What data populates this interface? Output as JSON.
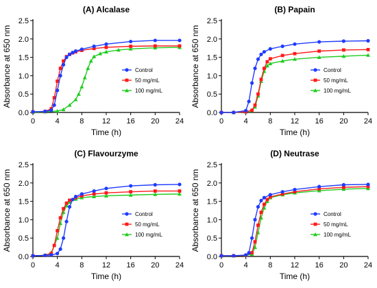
{
  "chart_data": [
    {
      "type": "line",
      "title": "(A)  Alcalase",
      "xlabel": "Time (h)",
      "ylabel": "Absorbance at 650 nm",
      "xlim": [
        0,
        24
      ],
      "ylim": [
        0,
        2.5
      ],
      "xticks": [
        0,
        4,
        8,
        12,
        16,
        20,
        24
      ],
      "yticks": [
        0.0,
        0.5,
        1.0,
        1.5,
        2.0,
        2.5
      ],
      "legend_position": "right",
      "series": [
        {
          "name": "Control",
          "color": "#1f3bff",
          "marker": "circle",
          "x": [
            0,
            2,
            3,
            3.5,
            4,
            4.5,
            5,
            5.5,
            6,
            6.5,
            7,
            8,
            10,
            12,
            16,
            20,
            24
          ],
          "y": [
            0.02,
            0.03,
            0.06,
            0.2,
            0.6,
            1.0,
            1.3,
            1.5,
            1.58,
            1.63,
            1.67,
            1.72,
            1.8,
            1.86,
            1.93,
            1.96,
            1.96
          ]
        },
        {
          "name": "50 mg/mL",
          "color": "#ff1a1a",
          "marker": "square",
          "x": [
            0,
            2,
            3,
            3.5,
            4,
            4.5,
            5,
            5.5,
            6,
            6.5,
            7,
            8,
            10,
            12,
            16,
            20,
            24
          ],
          "y": [
            0.02,
            0.03,
            0.1,
            0.4,
            0.85,
            1.2,
            1.4,
            1.52,
            1.58,
            1.62,
            1.65,
            1.69,
            1.74,
            1.77,
            1.8,
            1.81,
            1.81
          ]
        },
        {
          "name": "100 mg/mL",
          "color": "#1fcc1f",
          "marker": "triangle",
          "x": [
            0,
            2,
            4,
            5,
            6,
            7,
            7.5,
            8,
            8.5,
            9,
            9.5,
            10,
            11,
            12,
            14,
            16,
            20,
            24
          ],
          "y": [
            0.01,
            0.02,
            0.04,
            0.08,
            0.2,
            0.35,
            0.5,
            0.7,
            0.95,
            1.2,
            1.4,
            1.52,
            1.6,
            1.65,
            1.7,
            1.73,
            1.76,
            1.77
          ]
        }
      ]
    },
    {
      "type": "line",
      "title": "(B)  Papain",
      "xlabel": "Time (h)",
      "ylabel": "Absorbance at 650 nm",
      "xlim": [
        0,
        24
      ],
      "ylim": [
        0,
        2.5
      ],
      "xticks": [
        0,
        4,
        8,
        12,
        16,
        20,
        24
      ],
      "yticks": [
        0.0,
        0.5,
        1.0,
        1.5,
        2.0,
        2.5
      ],
      "legend_position": "right",
      "series": [
        {
          "name": "Control",
          "color": "#1f3bff",
          "marker": "circle",
          "x": [
            0,
            2,
            4,
            4.5,
            5,
            5.5,
            6,
            6.5,
            7,
            8,
            10,
            12,
            16,
            20,
            24
          ],
          "y": [
            0.0,
            0.0,
            0.05,
            0.3,
            0.8,
            1.2,
            1.45,
            1.58,
            1.65,
            1.73,
            1.8,
            1.86,
            1.92,
            1.94,
            1.95
          ]
        },
        {
          "name": "50 mg/mL",
          "color": "#ff1a1a",
          "marker": "square",
          "x": [
            0,
            2,
            4,
            5,
            5.5,
            6,
            6.5,
            7,
            7.5,
            8,
            10,
            12,
            16,
            20,
            24
          ],
          "y": [
            0.0,
            0.0,
            0.02,
            0.06,
            0.2,
            0.5,
            0.9,
            1.2,
            1.38,
            1.46,
            1.55,
            1.6,
            1.67,
            1.7,
            1.71
          ]
        },
        {
          "name": "100 mg/mL",
          "color": "#1fcc1f",
          "marker": "triangle",
          "x": [
            0,
            2,
            4,
            5,
            5.5,
            6,
            6.5,
            7,
            7.5,
            8,
            10,
            12,
            16,
            20,
            24
          ],
          "y": [
            0.0,
            0.0,
            0.02,
            0.05,
            0.15,
            0.45,
            0.85,
            1.12,
            1.27,
            1.33,
            1.4,
            1.45,
            1.5,
            1.53,
            1.56
          ]
        }
      ]
    },
    {
      "type": "line",
      "title": "(C)  Flavourzyme",
      "xlabel": "Time (h)",
      "ylabel": "Absorbance at 650 nm",
      "xlim": [
        0,
        24
      ],
      "ylim": [
        0,
        2.5
      ],
      "xticks": [
        0,
        4,
        8,
        12,
        16,
        20,
        24
      ],
      "yticks": [
        0.0,
        0.5,
        1.0,
        1.5,
        2.0,
        2.5
      ],
      "legend_position": "right",
      "series": [
        {
          "name": "Control",
          "color": "#1f3bff",
          "marker": "circle",
          "x": [
            0,
            2,
            3,
            4,
            4.5,
            5,
            5.5,
            6,
            6.5,
            7,
            8,
            10,
            12,
            16,
            20,
            24
          ],
          "y": [
            0.02,
            0.03,
            0.04,
            0.08,
            0.2,
            0.5,
            0.95,
            1.35,
            1.55,
            1.63,
            1.7,
            1.78,
            1.85,
            1.92,
            1.95,
            1.96
          ]
        },
        {
          "name": "50 mg/mL",
          "color": "#ff1a1a",
          "marker": "square",
          "x": [
            0,
            2,
            3,
            3.5,
            4,
            4.5,
            5,
            5.5,
            6,
            7,
            8,
            10,
            12,
            16,
            20,
            24
          ],
          "y": [
            0.02,
            0.03,
            0.08,
            0.3,
            0.7,
            1.05,
            1.3,
            1.45,
            1.53,
            1.6,
            1.65,
            1.7,
            1.73,
            1.76,
            1.78,
            1.78
          ]
        },
        {
          "name": "100 mg/mL",
          "color": "#1fcc1f",
          "marker": "triangle",
          "x": [
            0,
            2,
            3,
            4,
            4.5,
            5,
            5.5,
            6,
            7,
            8,
            10,
            12,
            16,
            20,
            24
          ],
          "y": [
            0.02,
            0.03,
            0.1,
            0.5,
            0.9,
            1.2,
            1.38,
            1.48,
            1.56,
            1.6,
            1.63,
            1.65,
            1.67,
            1.69,
            1.7
          ]
        }
      ]
    },
    {
      "type": "line",
      "title": "(D)  Neutrase",
      "xlabel": "Time (h)",
      "ylabel": "Absorbance at 650 nm",
      "xlim": [
        0,
        24
      ],
      "ylim": [
        0,
        2.5
      ],
      "xticks": [
        0,
        4,
        8,
        12,
        16,
        20,
        24
      ],
      "yticks": [
        0.0,
        0.5,
        1.0,
        1.5,
        2.0,
        2.5
      ],
      "legend_position": "right",
      "series": [
        {
          "name": "Control",
          "color": "#1f3bff",
          "marker": "circle",
          "x": [
            0,
            2,
            4,
            4.5,
            5,
            5.5,
            6,
            6.5,
            7,
            8,
            10,
            12,
            16,
            20,
            24
          ],
          "y": [
            0.02,
            0.02,
            0.04,
            0.1,
            0.5,
            1.0,
            1.35,
            1.52,
            1.6,
            1.68,
            1.76,
            1.82,
            1.9,
            1.95,
            1.96
          ]
        },
        {
          "name": "50 mg/mL",
          "color": "#ff1a1a",
          "marker": "square",
          "x": [
            0,
            2,
            4,
            5,
            5.5,
            6,
            6.5,
            7,
            7.5,
            8,
            10,
            12,
            16,
            20,
            24
          ],
          "y": [
            0.02,
            0.02,
            0.03,
            0.1,
            0.4,
            0.85,
            1.2,
            1.42,
            1.55,
            1.62,
            1.7,
            1.76,
            1.84,
            1.88,
            1.9
          ]
        },
        {
          "name": "100 mg/mL",
          "color": "#1fcc1f",
          "marker": "triangle",
          "x": [
            0,
            2,
            4,
            5,
            5.5,
            6,
            6.5,
            7,
            7.5,
            8,
            10,
            12,
            16,
            20,
            24
          ],
          "y": [
            0.02,
            0.02,
            0.03,
            0.06,
            0.25,
            0.65,
            1.05,
            1.32,
            1.5,
            1.6,
            1.68,
            1.73,
            1.79,
            1.83,
            1.85
          ]
        }
      ]
    }
  ]
}
